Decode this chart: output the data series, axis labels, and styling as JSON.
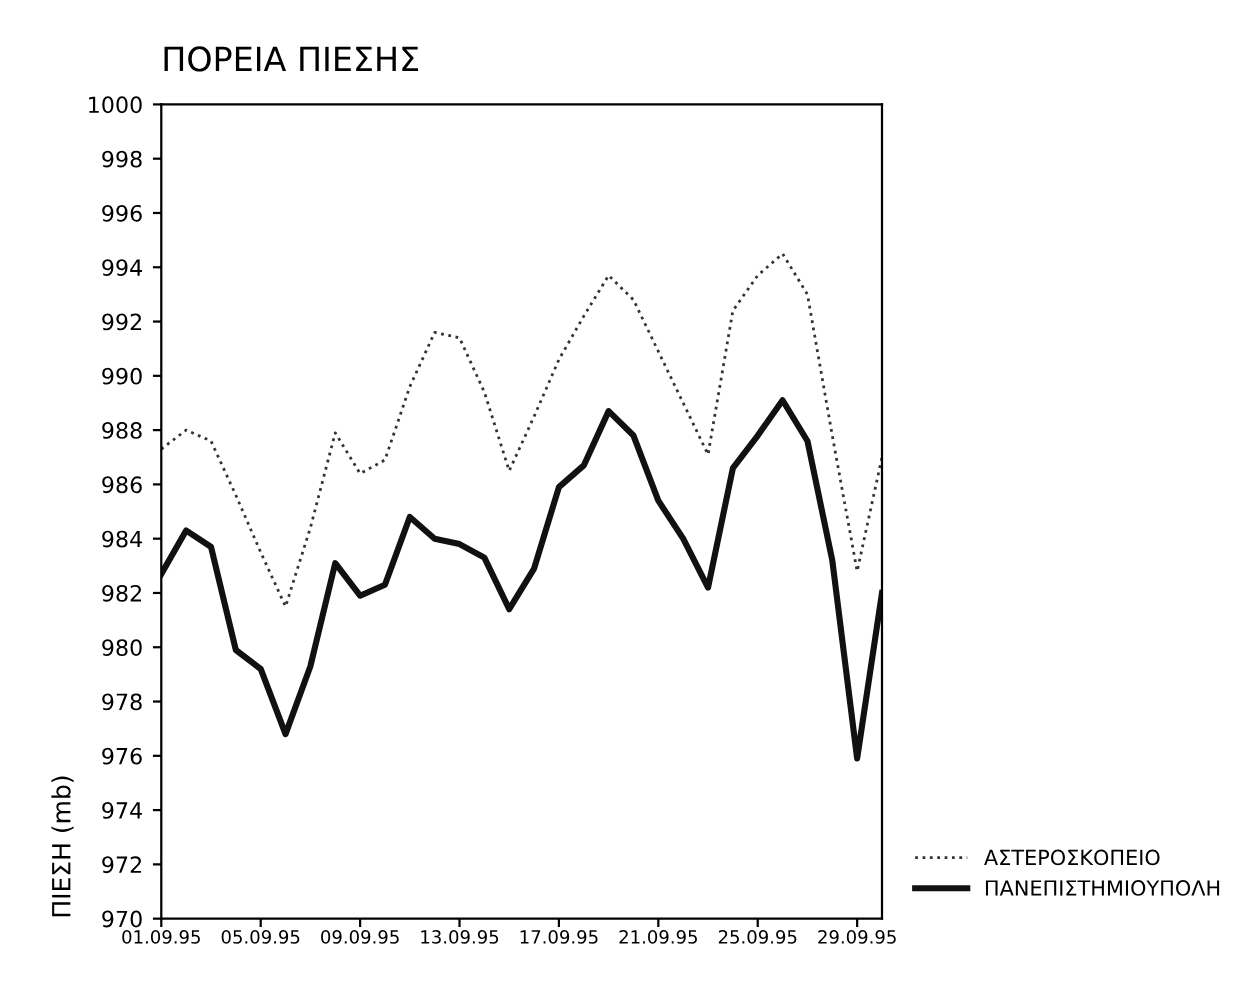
{
  "chart_data": {
    "type": "line",
    "title": "ΠΟΡΕΙΑ ΠΙΕΣΗΣ",
    "ylabel": "ΠΙΕΣΗ (mb)",
    "x": [
      "1995-09-01",
      "1995-09-02",
      "1995-09-03",
      "1995-09-04",
      "1995-09-05",
      "1995-09-06",
      "1995-09-07",
      "1995-09-08",
      "1995-09-09",
      "1995-09-10",
      "1995-09-11",
      "1995-09-12",
      "1995-09-13",
      "1995-09-14",
      "1995-09-15",
      "1995-09-16",
      "1995-09-17",
      "1995-09-18",
      "1995-09-19",
      "1995-09-20",
      "1995-09-21",
      "1995-09-22",
      "1995-09-23",
      "1995-09-24",
      "1995-09-25",
      "1995-09-26",
      "1995-09-27",
      "1995-09-28",
      "1995-09-29",
      "1995-09-30"
    ],
    "series": [
      {
        "name": "ΑΣΤΕΡΟΣΚΟΠΕΙΟ",
        "color": "#333333",
        "line_style": "dotted",
        "values": [
          987.3,
          988.0,
          987.6,
          985.6,
          983.5,
          981.5,
          984.4,
          987.9,
          986.4,
          986.9,
          989.6,
          991.6,
          991.4,
          989.4,
          986.5,
          988.5,
          990.6,
          992.2,
          993.7,
          992.8,
          990.9,
          989.0,
          987.1,
          992.4,
          993.7,
          994.5,
          993.0,
          987.8,
          982.8,
          987.0
        ]
      },
      {
        "name": "ΠΑΝΕΠΙΣΤΗΜΙΟΥΠΟΛΗ",
        "color": "#111111",
        "line_style": "solid",
        "values": [
          982.7,
          984.3,
          983.7,
          979.9,
          979.2,
          976.8,
          979.3,
          983.1,
          981.9,
          982.3,
          984.8,
          984.0,
          983.8,
          983.3,
          981.4,
          982.9,
          985.9,
          986.7,
          988.7,
          987.8,
          985.4,
          984.0,
          982.2,
          986.6,
          987.8,
          989.1,
          987.6,
          983.2,
          975.9,
          982.0
        ]
      }
    ],
    "xlim": [
      "1995-09-01",
      "1995-09-30"
    ],
    "xticks": [
      {
        "value": "1995-09-01",
        "label": "01.09.95"
      },
      {
        "value": "1995-09-05",
        "label": "05.09.95"
      },
      {
        "value": "1995-09-09",
        "label": "09.09.95"
      },
      {
        "value": "1995-09-13",
        "label": "13.09.95"
      },
      {
        "value": "1995-09-17",
        "label": "17.09.95"
      },
      {
        "value": "1995-09-21",
        "label": "21.09.95"
      },
      {
        "value": "1995-09-25",
        "label": "25.09.95"
      },
      {
        "value": "1995-09-29",
        "label": "29.09.95"
      }
    ],
    "ylim": [
      970,
      1000
    ],
    "yticks": [
      970,
      972,
      974,
      976,
      978,
      980,
      982,
      984,
      986,
      988,
      990,
      992,
      994,
      996,
      998,
      1000
    ],
    "grid": false,
    "legend": "bottom right",
    "marker": "none"
  }
}
